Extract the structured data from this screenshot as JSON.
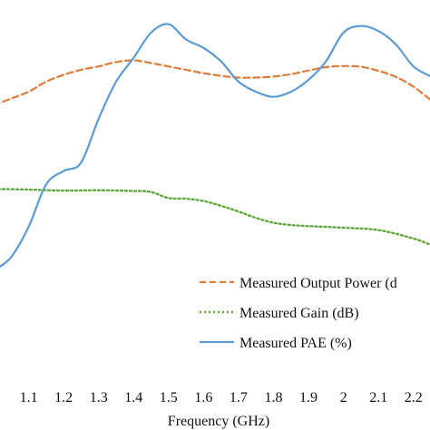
{
  "chart_data": {
    "type": "line",
    "xlabel": "Frequency (GHz)",
    "ylabel": "",
    "title": "",
    "xlim": [
      1.0,
      2.25
    ],
    "ylim": [
      0,
      100
    ],
    "x_ticks": [
      "1.1",
      "1.2",
      "1.3",
      "1.4",
      "1.5",
      "1.6",
      "1.7",
      "1.8",
      "1.9",
      "2",
      "2.1",
      "2.2"
    ],
    "legend_position": "bottom-right",
    "grid": false,
    "series": [
      {
        "name": "Measured Output Power (d",
        "style": "dashed",
        "color": "#E07B39",
        "x": [
          1.0,
          1.05,
          1.1,
          1.15,
          1.2,
          1.25,
          1.3,
          1.35,
          1.4,
          1.45,
          1.5,
          1.55,
          1.6,
          1.65,
          1.7,
          1.75,
          1.8,
          1.85,
          1.9,
          1.95,
          2.0,
          2.05,
          2.1,
          2.15,
          2.2,
          2.25
        ],
        "y": [
          75,
          77,
          79,
          82,
          84,
          85.5,
          86.5,
          87.8,
          88.3,
          87.5,
          86.5,
          85.5,
          84.5,
          83.7,
          83.2,
          83.2,
          83.5,
          84.2,
          85.3,
          86.3,
          86.6,
          86.4,
          85.2,
          83.4,
          80.5,
          76.5
        ]
      },
      {
        "name": "Measured Gain (dB)",
        "style": "dotted",
        "color": "#5FA83B",
        "x": [
          1.0,
          1.1,
          1.2,
          1.3,
          1.4,
          1.45,
          1.5,
          1.55,
          1.6,
          1.65,
          1.7,
          1.75,
          1.8,
          1.85,
          1.9,
          2.0,
          2.1,
          2.2,
          2.25
        ],
        "y": [
          50.2,
          50,
          49.7,
          49.8,
          49.6,
          49.3,
          47.5,
          47.3,
          46.6,
          45.2,
          43.5,
          41.6,
          40.2,
          39.5,
          39.2,
          38.7,
          38,
          35.5,
          33.6
        ]
      },
      {
        "name": "Measured PAE (%)",
        "style": "solid",
        "color": "#5B9BD5",
        "x": [
          1.0,
          1.05,
          1.1,
          1.15,
          1.2,
          1.25,
          1.3,
          1.35,
          1.4,
          1.45,
          1.5,
          1.55,
          1.6,
          1.65,
          1.7,
          1.75,
          1.8,
          1.85,
          1.9,
          1.95,
          2.0,
          2.05,
          2.1,
          2.15,
          2.2,
          2.25
        ],
        "y": [
          26,
          30,
          39,
          51.5,
          55.5,
          58,
          71,
          82,
          89,
          96.5,
          99,
          94.5,
          92,
          88,
          82,
          79,
          77.5,
          79,
          82.5,
          88,
          96.5,
          98.5,
          97,
          93,
          86.5,
          83.5
        ]
      }
    ]
  }
}
